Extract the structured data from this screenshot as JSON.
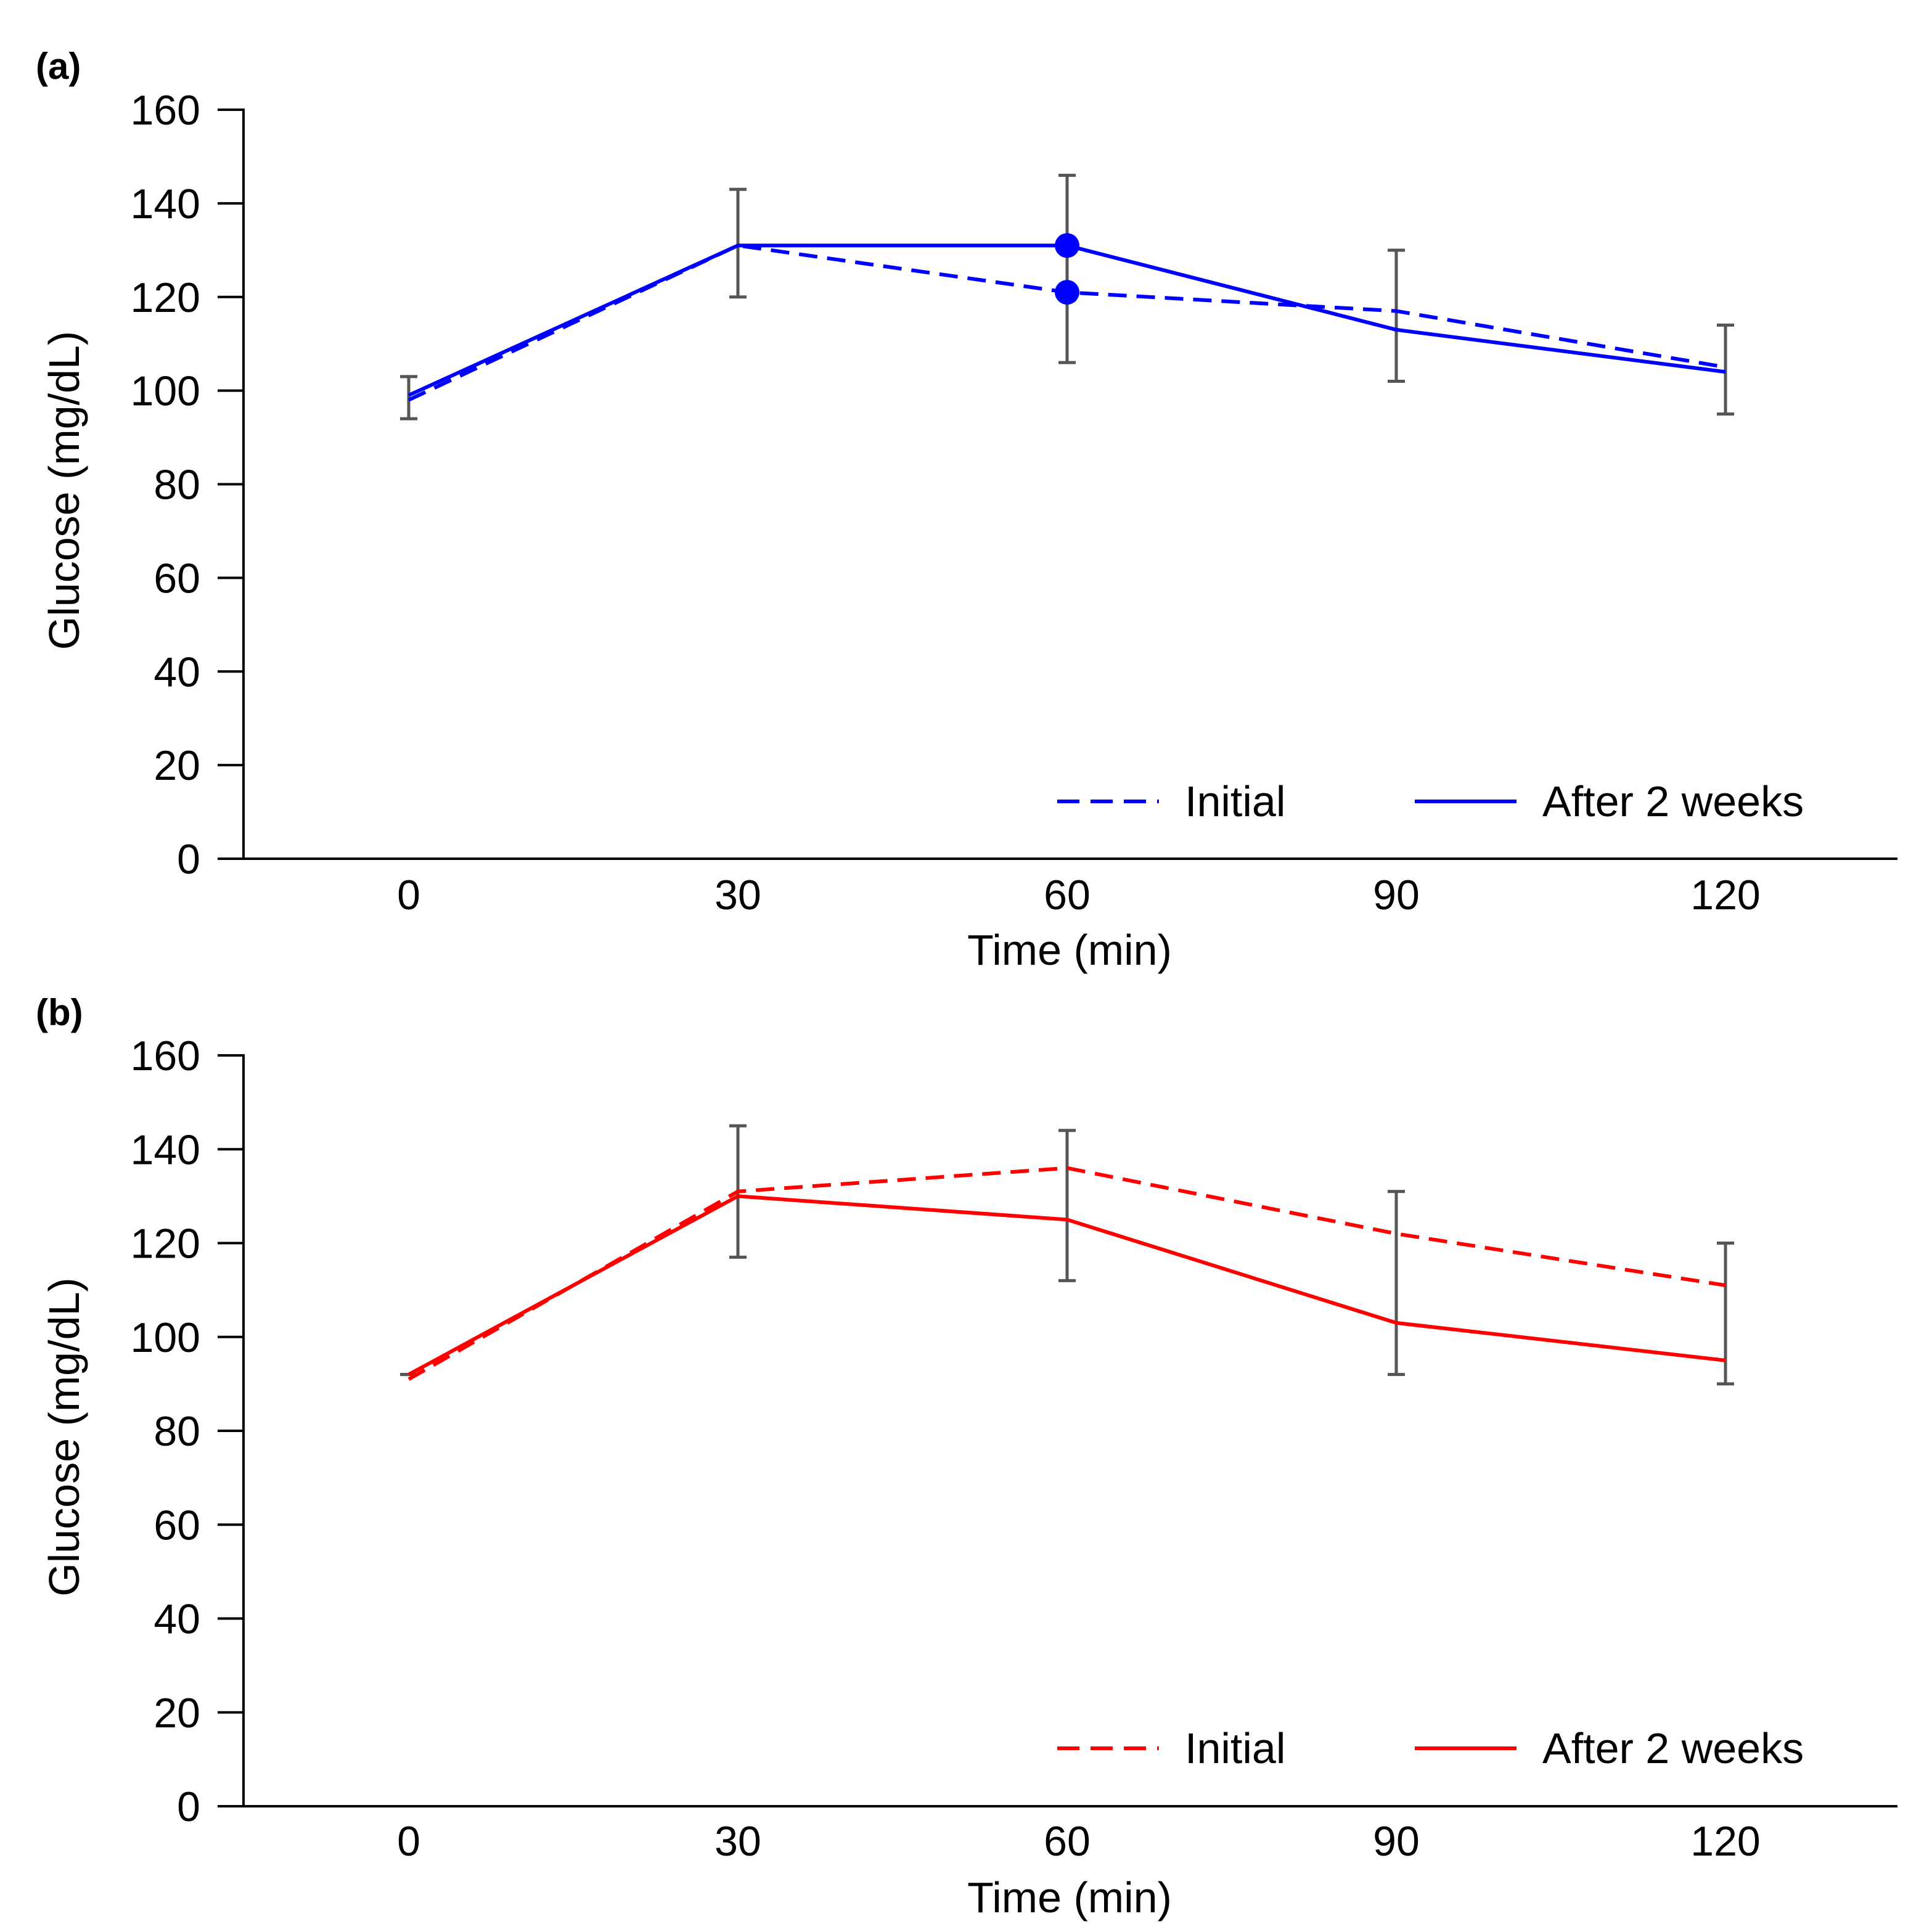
{
  "chart_data": [
    {
      "type": "line",
      "panel_label": "(a)",
      "color": "#0000ff",
      "xlabel": "Time (min)",
      "ylabel": "Glucose (mg/dL)",
      "x": [
        0,
        30,
        60,
        90,
        120
      ],
      "x_tick_labels": [
        "0",
        "30",
        "60",
        "90",
        "120"
      ],
      "xlim": [
        -15,
        135
      ],
      "ylim": [
        0,
        160
      ],
      "y_ticks": [
        0,
        20,
        40,
        60,
        80,
        100,
        120,
        140,
        160
      ],
      "y_tick_labels": [
        "0",
        "20",
        "40",
        "60",
        "80",
        "100",
        "120",
        "140",
        "160"
      ],
      "grid": false,
      "legend_position": "bottom-right",
      "series": [
        {
          "name": "Initial",
          "style": "dashed",
          "values": [
            98,
            131,
            121,
            117,
            105
          ]
        },
        {
          "name": "After 2 weeks",
          "style": "solid",
          "values": [
            99,
            131,
            131,
            113,
            104
          ]
        }
      ],
      "error_bars": [
        {
          "x": 0,
          "low": 94,
          "high": 103
        },
        {
          "x": 30,
          "low": 120,
          "high": 143
        },
        {
          "x": 60,
          "low": 106,
          "high": 146
        },
        {
          "x": 90,
          "low": 102,
          "high": 130
        },
        {
          "x": 120,
          "low": 95,
          "high": 114
        }
      ],
      "markers": [
        {
          "series": "Initial",
          "x": 60,
          "y": 121
        },
        {
          "series": "After 2 weeks",
          "x": 60,
          "y": 131
        }
      ]
    },
    {
      "type": "line",
      "panel_label": "(b)",
      "color": "#ff0000",
      "xlabel": "Time (min)",
      "ylabel": "Glucose (mg/dL)",
      "x": [
        0,
        30,
        60,
        90,
        120
      ],
      "x_tick_labels": [
        "0",
        "30",
        "60",
        "90",
        "120"
      ],
      "xlim": [
        -15,
        135
      ],
      "ylim": [
        0,
        160
      ],
      "y_ticks": [
        0,
        20,
        40,
        60,
        80,
        100,
        120,
        140,
        160
      ],
      "y_tick_labels": [
        "0",
        "20",
        "40",
        "60",
        "80",
        "100",
        "120",
        "140",
        "160"
      ],
      "grid": false,
      "legend_position": "bottom-right",
      "series": [
        {
          "name": "Initial",
          "style": "dashed",
          "values": [
            91,
            131,
            136,
            122,
            111
          ]
        },
        {
          "name": "After 2 weeks",
          "style": "solid",
          "values": [
            92,
            130,
            125,
            103,
            95
          ]
        }
      ],
      "error_bars": [
        {
          "x": 0,
          "low": 92,
          "high": 92
        },
        {
          "x": 30,
          "low": 117,
          "high": 145
        },
        {
          "x": 60,
          "low": 112,
          "high": 144
        },
        {
          "x": 90,
          "low": 92,
          "high": 131
        },
        {
          "x": 120,
          "low": 90,
          "high": 120
        }
      ],
      "markers": []
    }
  ],
  "colors": {
    "error_bar": "#555555",
    "axis": "#000000"
  }
}
